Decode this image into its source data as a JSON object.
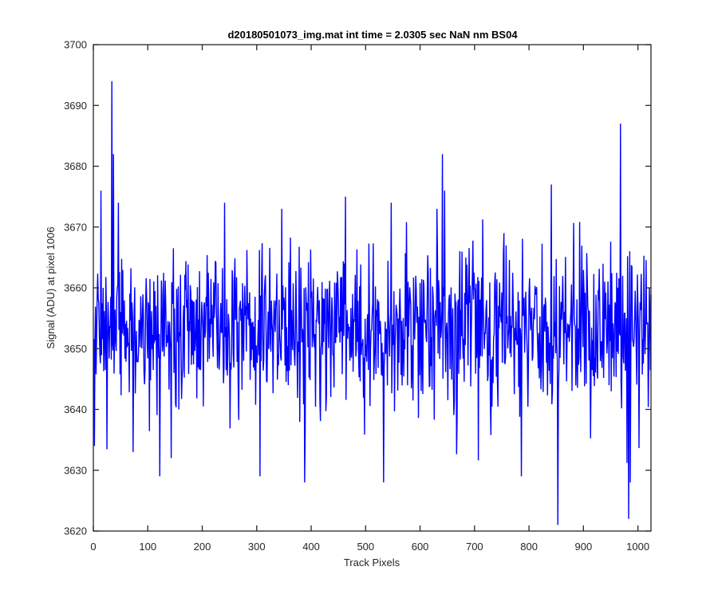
{
  "chart_data": {
    "type": "line",
    "title": "d20180501073_img.mat int time = 2.0305 sec  NaN nm BS04",
    "xlabel": "Track Pixels",
    "ylabel": "Signal (ADU) at pixel 1006",
    "xlim": [
      0,
      1024
    ],
    "ylim": [
      3620,
      3700
    ],
    "xticks": [
      0,
      100,
      200,
      300,
      400,
      500,
      600,
      700,
      800,
      900,
      1000
    ],
    "yticks": [
      3620,
      3630,
      3640,
      3650,
      3660,
      3670,
      3680,
      3690,
      3700
    ],
    "grid": false,
    "legend": "none",
    "box": true,
    "series": [
      {
        "color": "#0000ff",
        "n_points": 1024,
        "mean": 3653,
        "std": 6.5,
        "features": [
          {
            "x": 1,
            "y": 3634
          },
          {
            "x": 13,
            "y": 3676
          },
          {
            "x": 33,
            "y": 3694
          },
          {
            "x": 36,
            "y": 3682
          },
          {
            "x": 45,
            "y": 3674
          },
          {
            "x": 72,
            "y": 3633
          },
          {
            "x": 121,
            "y": 3629
          },
          {
            "x": 142,
            "y": 3632
          },
          {
            "x": 240,
            "y": 3674
          },
          {
            "x": 305,
            "y": 3629
          },
          {
            "x": 345,
            "y": 3673
          },
          {
            "x": 387,
            "y": 3628
          },
          {
            "x": 462,
            "y": 3675
          },
          {
            "x": 532,
            "y": 3628
          },
          {
            "x": 546,
            "y": 3674
          },
          {
            "x": 630,
            "y": 3673
          },
          {
            "x": 640,
            "y": 3682
          },
          {
            "x": 644,
            "y": 3676
          },
          {
            "x": 785,
            "y": 3629
          },
          {
            "x": 840,
            "y": 3677
          },
          {
            "x": 852,
            "y": 3621
          },
          {
            "x": 967,
            "y": 3687
          },
          {
            "x": 982,
            "y": 3622
          },
          {
            "x": 985,
            "y": 3628
          }
        ]
      }
    ]
  }
}
